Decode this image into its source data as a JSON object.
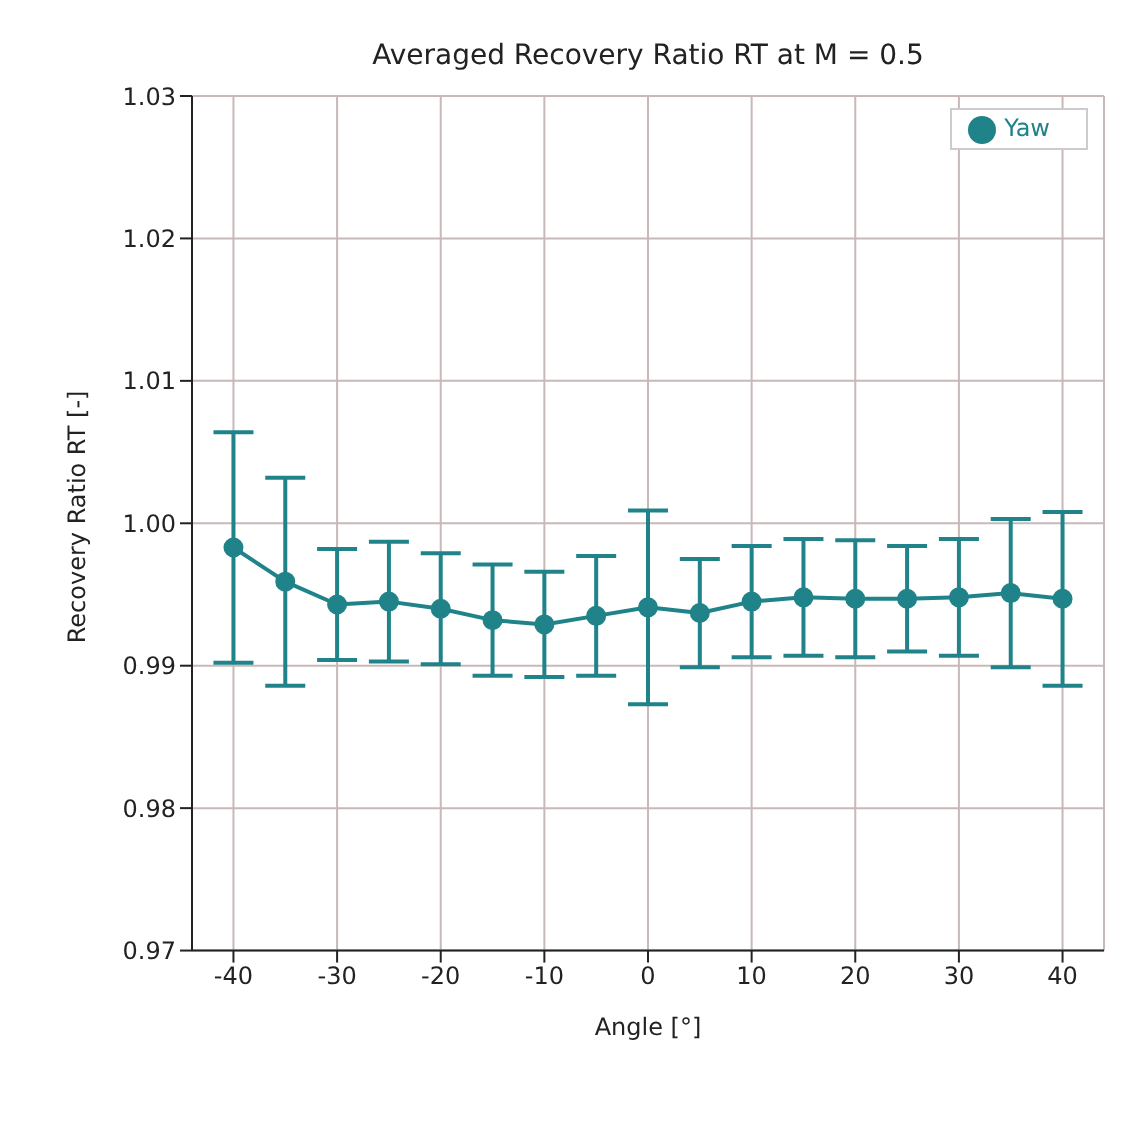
{
  "chart_data": {
    "type": "line",
    "title": "Averaged Recovery Ratio RT at M = 0.5",
    "xlabel": "Angle [°]",
    "ylabel": "Recovery Ratio RT [-]",
    "x": [
      -40,
      -35,
      -30,
      -25,
      -20,
      -15,
      -10,
      -5,
      0,
      5,
      10,
      15,
      20,
      25,
      30,
      35,
      40
    ],
    "series": [
      {
        "name": "Yaw",
        "color": "#1f8389",
        "values": [
          0.9983,
          0.9959,
          0.9943,
          0.9945,
          0.994,
          0.9932,
          0.9929,
          0.9935,
          0.9941,
          0.9937,
          0.9945,
          0.9948,
          0.9947,
          0.9947,
          0.9948,
          0.9951,
          0.9947
        ],
        "errors": [
          0.0081,
          0.0073,
          0.0039,
          0.0042,
          0.0039,
          0.0039,
          0.0037,
          0.0042,
          0.0068,
          0.0038,
          0.0039,
          0.0041,
          0.0041,
          0.0037,
          0.0041,
          0.0052,
          0.0061
        ]
      }
    ],
    "xlim": [
      -44,
      44
    ],
    "xticks": [
      -40,
      -30,
      -20,
      -10,
      0,
      10,
      20,
      30,
      40
    ],
    "ylim": [
      0.97,
      1.03
    ],
    "yticks": [
      0.97,
      0.98,
      0.99,
      {
        "value": 1.0,
        "label": "1.00"
      },
      1.01,
      1.02,
      1.03
    ],
    "grid": true,
    "legend": "top right",
    "marker": "circle",
    "line_style": "solid"
  }
}
